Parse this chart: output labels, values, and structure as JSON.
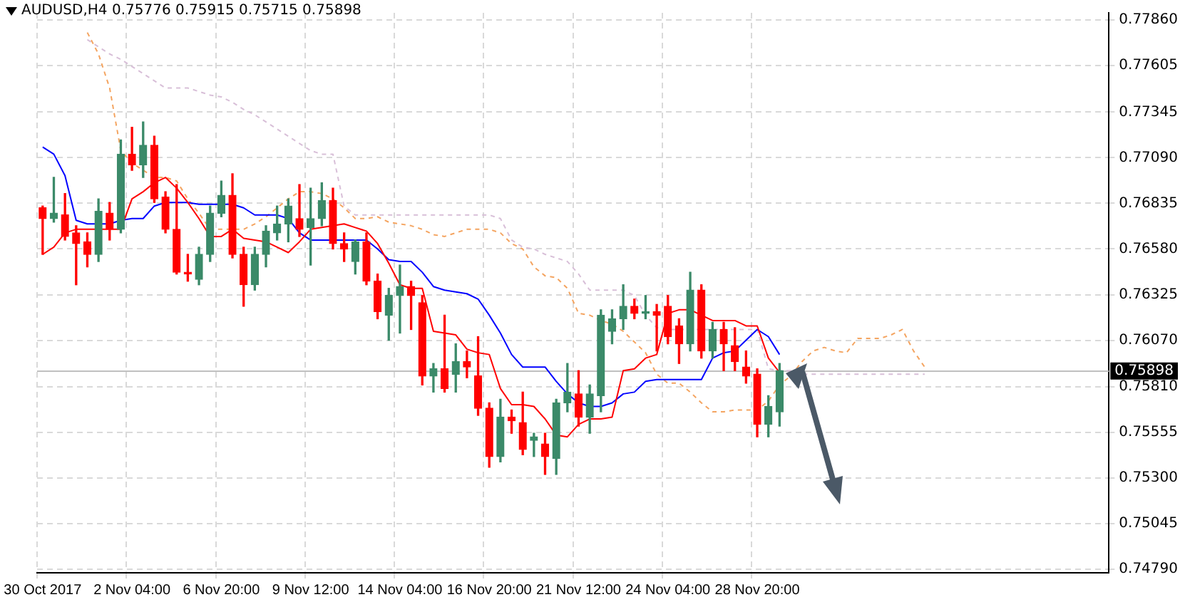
{
  "chart_data": {
    "type": "candlestick",
    "title": "AUDUSD,H4 0.75776 0.75915 0.75715 0.75898",
    "categories": [
      "30 Oct 2017",
      null,
      null,
      null,
      null,
      null,
      null,
      null,
      "2 Nov 04:00",
      null,
      null,
      null,
      null,
      null,
      null,
      null,
      "6 Nov 20:00",
      null,
      null,
      null,
      null,
      null,
      null,
      null,
      "9 Nov 12:00",
      null,
      null,
      null,
      null,
      null,
      null,
      null,
      "14 Nov 04:00",
      null,
      null,
      null,
      null,
      null,
      null,
      null,
      "16 Nov 20:00",
      null,
      null,
      null,
      null,
      null,
      null,
      null,
      "21 Nov 12:00",
      null,
      null,
      null,
      null,
      null,
      null,
      null,
      "24 Nov 04:00",
      null,
      null,
      null,
      null,
      null,
      null,
      null,
      "28 Nov 20:00",
      null,
      null,
      null,
      null,
      null,
      null,
      null,
      null,
      null,
      null,
      null,
      null,
      null,
      null,
      null,
      null,
      null,
      null,
      null,
      null,
      null,
      null,
      null,
      null,
      null,
      null,
      null,
      null,
      null,
      null,
      null
    ],
    "ylim": [
      0.7477,
      0.779
    ],
    "yticks": [
      {
        "value": 0.7786,
        "label": "0.77860"
      },
      0.77605,
      0.77345,
      {
        "value": 0.7709,
        "label": "0.77090"
      },
      0.76835,
      {
        "value": 0.7658,
        "label": "0.76580"
      },
      0.76325,
      {
        "value": 0.7607,
        "label": "0.76070"
      },
      {
        "value": 0.7581,
        "label": "0.75810"
      },
      0.75555,
      {
        "value": 0.753,
        "label": "0.75300"
      },
      0.75045,
      {
        "value": 0.7479,
        "label": "0.74790"
      }
    ],
    "grid": true,
    "marker": "none",
    "series": [
      {
        "ohlc": [
          [
            0.7681,
            0.7682,
            0.7655,
            0.7675
          ],
          [
            0.7675,
            0.7698,
            0.7673,
            0.7678
          ],
          [
            0.7677,
            0.7689,
            0.7663,
            0.7665
          ],
          [
            0.7667,
            0.7671,
            0.7638,
            0.7661
          ],
          [
            0.7662,
            0.7667,
            0.7648,
            0.7655
          ],
          [
            0.7655,
            0.7686,
            0.7651,
            0.7679
          ],
          [
            0.7678,
            0.7684,
            0.7663,
            0.7669
          ],
          [
            0.7669,
            0.7719,
            0.7667,
            0.7711
          ],
          [
            0.7711,
            0.7726,
            0.7702,
            0.7705
          ],
          [
            0.7705,
            0.7729,
            0.7698,
            0.7716
          ],
          [
            0.7716,
            0.7721,
            0.7684,
            0.7686
          ],
          [
            0.7687,
            0.769,
            0.7667,
            0.7669
          ],
          [
            0.7669,
            0.7694,
            0.7644,
            0.7645
          ],
          [
            0.7645,
            0.7655,
            0.764,
            0.7644
          ],
          [
            0.7641,
            0.7659,
            0.7638,
            0.7655
          ],
          [
            0.7655,
            0.7682,
            0.7651,
            0.7678
          ],
          [
            0.7678,
            0.7696,
            0.7676,
            0.7688
          ],
          [
            0.7688,
            0.77,
            0.7653,
            0.7655
          ],
          [
            0.7655,
            0.7659,
            0.7626,
            0.7638
          ],
          [
            0.7638,
            0.7659,
            0.7635,
            0.7655
          ],
          [
            0.7655,
            0.7671,
            0.7648,
            0.7668
          ],
          [
            0.7667,
            0.7682,
            0.7663,
            0.7672
          ],
          [
            0.7672,
            0.7686,
            0.7662,
            0.7682
          ],
          [
            0.7675,
            0.7694,
            0.7665,
            0.7669
          ],
          [
            0.767,
            0.7692,
            0.7649,
            0.7675
          ],
          [
            0.7675,
            0.7695,
            0.7671,
            0.7685
          ],
          [
            0.7685,
            0.7692,
            0.7658,
            0.7661
          ],
          [
            0.7661,
            0.7667,
            0.7651,
            0.7658
          ],
          [
            0.7651,
            0.7663,
            0.7644,
            0.7662
          ],
          [
            0.7662,
            0.7667,
            0.7638,
            0.764
          ],
          [
            0.764,
            0.7644,
            0.7619,
            0.7623
          ],
          [
            0.7621,
            0.7636,
            0.7607,
            0.7632
          ],
          [
            0.7632,
            0.7649,
            0.7611,
            0.7637
          ],
          [
            0.7637,
            0.764,
            0.7613,
            0.7632
          ],
          [
            0.7628,
            0.7632,
            0.7582,
            0.7587
          ],
          [
            0.7587,
            0.7594,
            0.7578,
            0.7591
          ],
          [
            0.7591,
            0.7621,
            0.7578,
            0.758
          ],
          [
            0.7588,
            0.7605,
            0.7578,
            0.7595
          ],
          [
            0.7595,
            0.7601,
            0.7586,
            0.7592
          ],
          [
            0.7587,
            0.7609,
            0.7565,
            0.7569
          ],
          [
            0.7569,
            0.7572,
            0.7536,
            0.7542
          ],
          [
            0.7542,
            0.7574,
            0.7539,
            0.7564
          ],
          [
            0.7564,
            0.7568,
            0.7555,
            0.7562
          ],
          [
            0.7561,
            0.7578,
            0.7543,
            0.7546
          ],
          [
            0.7551,
            0.7555,
            0.7542,
            0.7553
          ],
          [
            0.7549,
            0.7555,
            0.7532,
            0.7542
          ],
          [
            0.7541,
            0.7574,
            0.7532,
            0.7572
          ],
          [
            0.7572,
            0.7594,
            0.7567,
            0.7578
          ],
          [
            0.7577,
            0.759,
            0.7559,
            0.7564
          ],
          [
            0.7564,
            0.7582,
            0.7555,
            0.7577
          ],
          [
            0.7576,
            0.7624,
            0.7567,
            0.7621
          ],
          [
            0.7612,
            0.7624,
            0.7605,
            0.7619
          ],
          [
            0.7619,
            0.7638,
            0.7613,
            0.7626
          ],
          [
            0.7626,
            0.763,
            0.7619,
            0.7622
          ],
          [
            0.7622,
            0.7632,
            0.7619,
            0.7623
          ],
          [
            0.7623,
            0.7627,
            0.7601,
            0.7621
          ],
          [
            0.7626,
            0.7632,
            0.7605,
            0.7609
          ],
          [
            0.7615,
            0.7619,
            0.7594,
            0.7605
          ],
          [
            0.7605,
            0.7645,
            0.7601,
            0.7635
          ],
          [
            0.7635,
            0.7638,
            0.7597,
            0.7601
          ],
          [
            0.7601,
            0.7617,
            0.7597,
            0.7613
          ],
          [
            0.7613,
            0.7617,
            0.759,
            0.7605
          ],
          [
            0.7604,
            0.7614,
            0.759,
            0.7595
          ],
          [
            0.7592,
            0.7601,
            0.7583,
            0.7587
          ],
          [
            0.7588,
            0.7591,
            0.7553,
            0.756
          ],
          [
            0.756,
            0.7576,
            0.7553,
            0.757
          ],
          [
            0.7567,
            0.7594,
            0.7559,
            0.759
          ],
          null,
          null,
          null,
          null,
          null,
          null,
          null,
          null,
          null,
          null,
          null,
          null,
          null,
          null,
          null,
          null,
          null,
          null,
          null,
          null,
          null,
          null,
          null,
          null,
          null,
          null,
          null,
          null,
          null
        ],
        "colors": [
          "#ff0000",
          "#3b8a69",
          "#ff0000",
          "#ff0000",
          "#ff0000",
          "#3b8a69",
          "#ff0000",
          "#3b8a69",
          "#ff0000",
          "#3b8a69",
          "#ff0000",
          "#ff0000",
          "#ff0000",
          "#ff0000",
          "#3b8a69",
          "#3b8a69",
          "#3b8a69",
          "#ff0000",
          "#ff0000",
          "#3b8a69",
          "#3b8a69",
          "#3b8a69",
          "#3b8a69",
          "#ff0000",
          "#3b8a69",
          "#3b8a69",
          "#ff0000",
          "#ff0000",
          "#3b8a69",
          "#ff0000",
          "#ff0000",
          "#3b8a69",
          "#3b8a69",
          "#ff0000",
          "#ff0000",
          "#3b8a69",
          "#ff0000",
          "#3b8a69",
          "#ff0000",
          "#ff0000",
          "#ff0000",
          "#3b8a69",
          "#ff0000",
          "#ff0000",
          "#3b8a69",
          "#ff0000",
          "#3b8a69",
          "#3b8a69",
          "#ff0000",
          "#3b8a69",
          "#3b8a69",
          "#3b8a69",
          "#3b8a69",
          "#ff0000",
          "#3b8a69",
          "#ff0000",
          "#ff0000",
          "#ff0000",
          "#3b8a69",
          "#ff0000",
          "#3b8a69",
          "#ff0000",
          "#ff0000",
          "#ff0000",
          "#ff0000",
          "#3b8a69",
          "#3b8a69",
          null,
          null,
          null,
          null,
          null,
          null,
          null,
          null,
          null,
          null,
          null,
          null,
          null,
          null,
          null,
          null,
          null,
          null,
          null,
          null,
          null,
          null,
          null,
          null,
          null,
          null,
          null,
          null,
          null
        ]
      },
      {
        "type": "line",
        "color": "#ff0000",
        "values": [
          0.7655,
          0.7659,
          0.7667,
          0.7669,
          0.7669,
          0.7669,
          0.7669,
          0.7669,
          0.7686,
          0.769,
          0.7695,
          0.7698,
          0.7692,
          0.7684,
          0.7675,
          0.7665,
          0.7665,
          0.7669,
          0.7664,
          0.7663,
          0.7662,
          0.7659,
          0.7656,
          0.7662,
          0.7669,
          0.767,
          0.7671,
          0.7672,
          0.767,
          0.7668,
          0.7661,
          0.765,
          0.7638,
          0.7636,
          0.7636,
          0.7612,
          0.7611,
          0.761,
          0.7602,
          0.76,
          0.7599,
          0.758,
          0.7571,
          0.7571,
          0.757,
          0.7563,
          0.7554,
          0.7553,
          0.756,
          0.7563,
          0.7563,
          0.7564,
          0.759,
          0.7591,
          0.7597,
          0.7599,
          0.7622,
          0.7624,
          0.7624,
          0.7621,
          0.7618,
          0.7618,
          0.7618,
          0.7615,
          0.7615,
          0.7597,
          0.7589,
          null,
          null,
          null,
          null,
          null,
          null,
          null,
          null,
          null,
          null,
          null,
          null,
          null,
          null,
          null,
          null,
          null,
          null,
          null,
          null,
          null,
          null,
          null,
          null,
          null,
          null,
          null,
          null,
          null
        ]
      },
      {
        "type": "line",
        "color": "#0000ff",
        "values": [
          0.7715,
          0.7711,
          0.7699,
          0.7674,
          0.7672,
          0.7672,
          0.7672,
          0.7674,
          0.7675,
          0.7675,
          0.7682,
          0.7684,
          0.7684,
          0.7684,
          0.7683,
          0.7683,
          0.7683,
          0.7683,
          0.7681,
          0.7677,
          0.7677,
          0.7677,
          0.7675,
          0.7667,
          0.7663,
          0.7663,
          0.7663,
          0.7663,
          0.7663,
          0.7663,
          0.7658,
          0.7652,
          0.7651,
          0.7651,
          0.7645,
          0.7637,
          0.7635,
          0.7634,
          0.7633,
          0.763,
          0.7621,
          0.7611,
          0.7599,
          0.7592,
          0.7592,
          0.7592,
          0.7584,
          0.7577,
          0.7572,
          0.757,
          0.757,
          0.7572,
          0.7577,
          0.7578,
          0.7584,
          0.7585,
          0.7585,
          0.7585,
          0.7585,
          0.7585,
          0.7597,
          0.76,
          0.7601,
          0.7607,
          0.7613,
          0.7609,
          0.7599,
          null,
          null,
          null,
          null,
          null,
          null,
          null,
          null,
          null,
          null,
          null,
          null,
          null,
          null,
          null,
          null,
          null,
          null,
          null,
          null,
          null,
          null,
          null,
          null,
          null,
          null,
          null,
          null,
          null
        ]
      },
      {
        "type": "line",
        "color": "#f4a460",
        "line_style": "dashed",
        "values": [
          null,
          null,
          null,
          null,
          0.7779,
          0.7767,
          0.7748,
          0.7713,
          0.7706,
          0.7702,
          0.7698,
          0.7698,
          0.7696,
          0.7686,
          0.7678,
          0.7669,
          0.7669,
          0.7669,
          0.7669,
          0.7672,
          0.7676,
          0.7681,
          0.7686,
          0.769,
          0.769,
          0.7689,
          0.7686,
          0.7681,
          0.7675,
          0.7675,
          0.7676,
          0.7673,
          0.7672,
          0.7671,
          0.7669,
          0.7666,
          0.7665,
          0.7667,
          0.7669,
          0.7669,
          0.7669,
          0.7667,
          0.7661,
          0.7658,
          0.7648,
          0.7643,
          0.7642,
          0.7636,
          0.7622,
          0.7621,
          0.7618,
          0.7616,
          0.7612,
          0.7606,
          0.76,
          0.7588,
          0.7583,
          0.7583,
          0.7578,
          0.7572,
          0.7567,
          0.7567,
          0.7568,
          0.7568,
          0.7568,
          0.7573,
          0.7582,
          0.7587,
          0.7595,
          0.7601,
          0.7603,
          0.7601,
          0.76,
          0.7608,
          0.7608,
          0.7608,
          0.761,
          0.7613,
          0.7601,
          0.7592,
          null,
          null,
          null,
          null,
          null,
          null,
          null,
          null,
          null,
          null,
          null,
          null,
          null,
          null,
          null,
          null
        ]
      },
      {
        "type": "line",
        "color": "#d8bfd8",
        "line_style": "dashed",
        "values": [
          null,
          null,
          null,
          null,
          0.7775,
          0.7771,
          0.7767,
          0.7764,
          0.776,
          0.7756,
          0.7752,
          0.7748,
          0.7748,
          0.7748,
          0.7746,
          0.7744,
          0.7743,
          0.774,
          0.7736,
          0.7733,
          0.7729,
          0.7725,
          0.7721,
          0.7717,
          0.7713,
          0.7711,
          0.7711,
          0.7682,
          0.7677,
          0.7677,
          0.7677,
          0.7677,
          0.7677,
          0.7677,
          0.7677,
          0.7677,
          0.7677,
          0.7677,
          0.7677,
          0.7677,
          0.7677,
          0.7675,
          0.7663,
          0.7659,
          0.7658,
          0.7655,
          0.7653,
          0.7651,
          0.7644,
          0.7635,
          0.7635,
          0.7635,
          0.7635,
          0.7632,
          0.7621,
          0.7614,
          0.7613,
          0.7613,
          0.7613,
          0.7613,
          0.7613,
          0.7613,
          0.7613,
          0.7613,
          0.7613,
          0.7591,
          0.759,
          0.759,
          0.7588,
          0.7588,
          0.7588,
          0.7588,
          0.7588,
          0.7588,
          0.7588,
          0.7588,
          0.7588,
          0.7588,
          0.7588,
          0.7588,
          null,
          null,
          null,
          null,
          null,
          null,
          null,
          null,
          null,
          null,
          null,
          null,
          null,
          null,
          null,
          null
        ]
      }
    ],
    "ref_lines": [
      {
        "axis": "y",
        "value": 0.75898,
        "label": "0.75898",
        "color": "#c0c0c0"
      }
    ]
  }
}
